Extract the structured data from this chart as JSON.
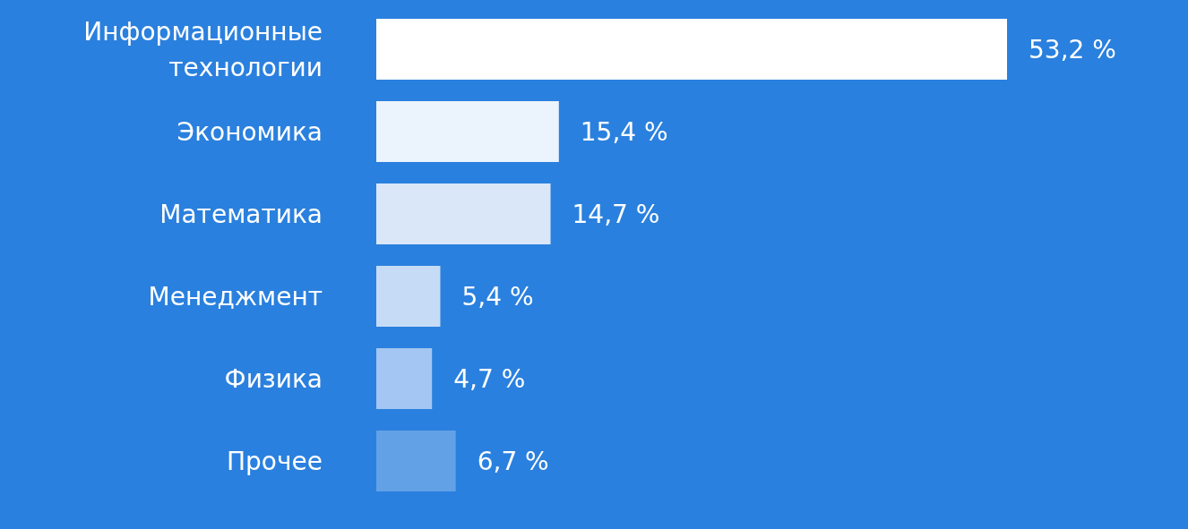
{
  "chart_data": {
    "type": "bar",
    "orientation": "horizontal",
    "categories": [
      "Информационные технологии",
      "Экономика",
      "Математика",
      "Менеджмент",
      "Физика",
      "Прочее"
    ],
    "values": [
      53.2,
      15.4,
      14.7,
      5.4,
      4.7,
      6.7
    ],
    "colors": [
      "#ffffff",
      "#ebf3fc",
      "#d9e7f8",
      "#c6dcf6",
      "#a3c6f2",
      "#63a1e6"
    ],
    "value_labels": [
      "53,2 %",
      "15,4 %",
      "14,7 %",
      "5,4 %",
      "4,7 %",
      "6,7 %"
    ]
  }
}
